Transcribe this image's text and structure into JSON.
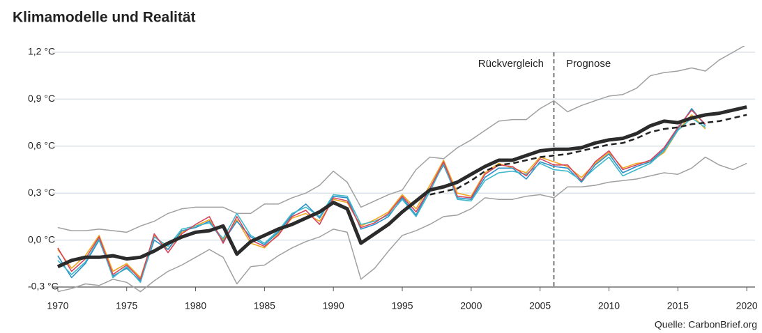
{
  "chart_data": {
    "type": "line",
    "title": "Klimamodelle und Realität",
    "annotations": [
      "Rückvergleich",
      "Prognose"
    ],
    "vline": 2006,
    "source": "Quelle: CarbonBrief.org",
    "x": [
      1970,
      1971,
      1972,
      1973,
      1974,
      1975,
      1976,
      1977,
      1978,
      1979,
      1980,
      1981,
      1982,
      1983,
      1984,
      1985,
      1986,
      1987,
      1988,
      1989,
      1990,
      1991,
      1992,
      1993,
      1994,
      1995,
      1996,
      1997,
      1998,
      1999,
      2000,
      2001,
      2002,
      2003,
      2004,
      2005,
      2006,
      2007,
      2008,
      2009,
      2010,
      2011,
      2012,
      2013,
      2014,
      2015,
      2016,
      2017,
      2018,
      2019,
      2020
    ],
    "xlim": [
      1969.6,
      2020.6
    ],
    "xticks": [
      1970,
      1975,
      1980,
      1985,
      1990,
      1995,
      2000,
      2005,
      2010,
      2015,
      2020
    ],
    "ylim": [
      -0.3,
      1.2
    ],
    "yticks": [
      {
        "value": -0.3,
        "label": "-0,3 °C"
      },
      {
        "value": 0,
        "label": "0,0 °C"
      },
      {
        "value": 0.3,
        "label": "0,3 °C"
      },
      {
        "value": 0.6,
        "label": "0,6 °C"
      },
      {
        "value": 0.9,
        "label": "0,9 °C"
      },
      {
        "value": 1.2,
        "label": "1,2 °C"
      }
    ],
    "grid": true,
    "series": [
      {
        "color": "#a0a0a0",
        "line_width": 1.5,
        "dashed": false,
        "values": [
          0.08,
          0.06,
          0.06,
          0.07,
          0.06,
          0.05,
          0.09,
          0.12,
          0.17,
          0.2,
          0.21,
          0.21,
          0.21,
          0.17,
          0.17,
          0.23,
          0.23,
          0.27,
          0.3,
          0.35,
          0.44,
          0.37,
          0.21,
          0.25,
          0.29,
          0.32,
          0.45,
          0.53,
          0.52,
          0.59,
          0.64,
          0.7,
          0.76,
          0.77,
          0.77,
          0.84,
          0.89,
          0.82,
          0.86,
          0.89,
          0.92,
          0.93,
          0.97,
          1.05,
          1.07,
          1.08,
          1.1,
          1.08,
          1.15,
          1.2,
          1.25
        ]
      },
      {
        "color": "#a0a0a0",
        "line_width": 1.5,
        "dashed": false,
        "values": [
          -0.33,
          -0.31,
          -0.28,
          -0.29,
          -0.25,
          -0.27,
          -0.33,
          -0.26,
          -0.2,
          -0.16,
          -0.11,
          -0.06,
          -0.11,
          -0.28,
          -0.17,
          -0.16,
          -0.1,
          -0.05,
          -0.01,
          0.02,
          0.07,
          0.05,
          -0.25,
          -0.18,
          -0.07,
          0.03,
          0.06,
          0.1,
          0.15,
          0.16,
          0.2,
          0.27,
          0.26,
          0.26,
          0.28,
          0.29,
          0.27,
          0.34,
          0.34,
          0.35,
          0.37,
          0.38,
          0.39,
          0.41,
          0.43,
          0.42,
          0.46,
          0.53,
          0.48,
          0.45,
          0.49
        ]
      },
      {
        "color": "#f2a81d",
        "line_width": 1.6,
        "dashed": false,
        "values": [
          -0.06,
          -0.18,
          -0.1,
          0.03,
          -0.2,
          -0.15,
          -0.24,
          0.03,
          -0.06,
          0.05,
          0.09,
          0.13,
          0.0,
          0.13,
          -0.02,
          -0.05,
          0.04,
          0.14,
          0.17,
          0.12,
          0.26,
          0.24,
          0.09,
          0.13,
          0.18,
          0.29,
          0.2,
          0.35,
          0.51,
          0.3,
          0.28,
          0.43,
          0.49,
          0.46,
          0.43,
          0.53,
          0.5,
          0.47,
          0.4,
          0.49,
          0.56,
          0.46,
          0.49,
          0.5,
          0.56,
          0.7,
          0.8,
          0.71,
          null,
          null,
          null
        ]
      },
      {
        "color": "#2a8fc9",
        "line_width": 1.6,
        "dashed": false,
        "values": [
          -0.1,
          -0.24,
          -0.15,
          0.0,
          -0.23,
          -0.18,
          -0.26,
          0.0,
          -0.06,
          0.06,
          0.08,
          0.12,
          -0.01,
          0.12,
          0.02,
          -0.03,
          0.05,
          0.16,
          0.23,
          0.14,
          0.28,
          0.27,
          0.07,
          0.1,
          0.15,
          0.27,
          0.16,
          0.33,
          0.48,
          0.27,
          0.26,
          0.4,
          0.46,
          0.46,
          0.39,
          0.5,
          0.47,
          0.46,
          0.37,
          0.48,
          0.55,
          0.43,
          0.47,
          0.5,
          0.58,
          0.71,
          0.84,
          0.73,
          null,
          null,
          null
        ]
      },
      {
        "color": "#3fb8c9",
        "line_width": 1.6,
        "dashed": false,
        "values": [
          -0.13,
          -0.22,
          -0.14,
          0.01,
          -0.24,
          -0.17,
          -0.27,
          0.02,
          -0.04,
          0.07,
          0.09,
          0.11,
          0.01,
          0.17,
          0.03,
          -0.02,
          0.06,
          0.17,
          0.21,
          0.15,
          0.29,
          0.28,
          0.1,
          0.12,
          0.16,
          0.26,
          0.15,
          0.31,
          0.49,
          0.26,
          0.25,
          0.38,
          0.43,
          0.44,
          0.42,
          0.49,
          0.45,
          0.44,
          0.38,
          0.46,
          0.53,
          0.41,
          0.45,
          0.49,
          0.57,
          0.7,
          0.78,
          0.72,
          null,
          null,
          null
        ]
      },
      {
        "color": "#d6455e",
        "line_width": 1.6,
        "dashed": false,
        "values": [
          -0.05,
          -0.2,
          -0.12,
          0.02,
          -0.22,
          -0.16,
          -0.25,
          0.04,
          -0.08,
          0.04,
          0.1,
          0.15,
          -0.02,
          0.15,
          0.0,
          -0.04,
          0.03,
          0.15,
          0.19,
          0.1,
          0.27,
          0.25,
          0.08,
          0.11,
          0.17,
          0.28,
          0.18,
          0.33,
          0.5,
          0.28,
          0.27,
          0.42,
          0.48,
          0.47,
          0.41,
          0.52,
          0.48,
          0.48,
          0.38,
          0.5,
          0.57,
          0.45,
          0.48,
          0.51,
          0.59,
          0.72,
          0.83,
          0.74,
          null,
          null,
          null
        ]
      },
      {
        "color": "#222222",
        "line_width": 2.5,
        "dashed": true,
        "values": [
          null,
          null,
          null,
          null,
          null,
          null,
          null,
          null,
          null,
          null,
          null,
          null,
          null,
          null,
          null,
          null,
          null,
          null,
          null,
          null,
          null,
          null,
          null,
          null,
          null,
          null,
          null,
          0.29,
          0.31,
          0.33,
          0.38,
          0.44,
          0.48,
          0.49,
          0.51,
          0.53,
          0.54,
          0.55,
          0.57,
          0.59,
          0.61,
          0.62,
          0.65,
          0.69,
          0.71,
          0.72,
          0.74,
          0.75,
          0.76,
          0.78,
          0.8
        ]
      },
      {
        "color": "#2b2b2b",
        "line_width": 5,
        "dashed": false,
        "values": [
          -0.17,
          -0.13,
          -0.11,
          -0.11,
          -0.1,
          -0.12,
          -0.11,
          -0.07,
          -0.02,
          0.02,
          0.05,
          0.06,
          0.09,
          -0.09,
          -0.01,
          0.03,
          0.07,
          0.1,
          0.14,
          0.18,
          0.24,
          0.2,
          -0.02,
          0.04,
          0.1,
          0.18,
          0.25,
          0.32,
          0.34,
          0.37,
          0.42,
          0.47,
          0.51,
          0.51,
          0.54,
          0.57,
          0.58,
          0.58,
          0.59,
          0.62,
          0.64,
          0.65,
          0.68,
          0.73,
          0.76,
          0.75,
          0.78,
          0.8,
          0.81,
          0.83,
          0.85
        ]
      }
    ]
  }
}
